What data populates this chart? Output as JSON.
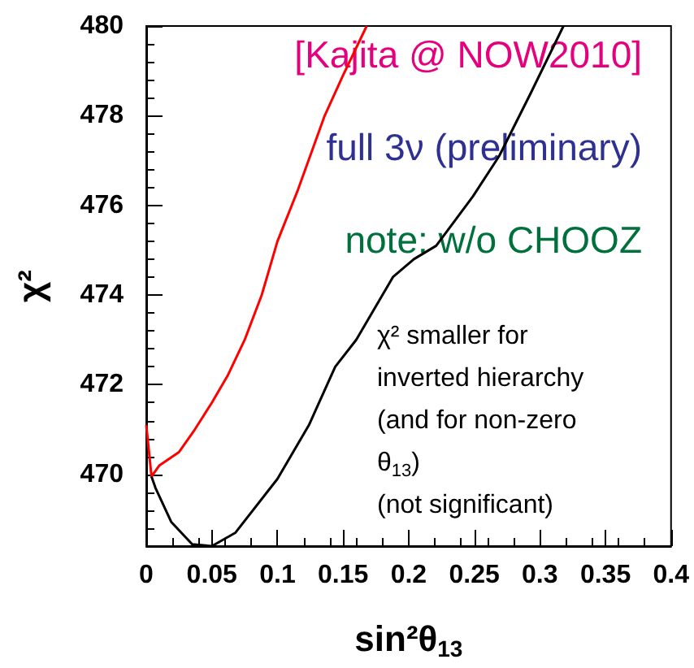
{
  "chart_data": {
    "type": "line",
    "xlabel": "sin²θ$_{13}$",
    "ylabel": "χ²",
    "xlim": [
      0,
      0.4
    ],
    "ylim": [
      468.4,
      480
    ],
    "xticks": [
      0,
      0.05,
      0.1,
      0.15,
      0.2,
      0.25,
      0.3,
      0.35,
      0.4
    ],
    "yticks": [
      470,
      472,
      474,
      476,
      478,
      480
    ],
    "grid": false,
    "marker": "none",
    "line_style": "solid",
    "annotations": [
      "[Kajita @ NOW2010]",
      "full 3ν (preliminary)",
      "note: w/o CHOOZ",
      "χ² smaller for\ninverted hierarchy\n(and for non-zero\nθ$_{13}$)\n(not significant)"
    ],
    "series": [
      {
        "color": "#ff0000",
        "x": [
          0,
          0.004,
          0.01,
          0.025,
          0.037,
          0.05,
          0.062,
          0.075,
          0.088,
          0.1,
          0.115,
          0.136,
          0.15,
          0.168
        ],
        "values": [
          471.1,
          469.95,
          470.2,
          470.5,
          471,
          471.6,
          472.2,
          473,
          474,
          475.2,
          476.3,
          478,
          478.9,
          480
        ]
      },
      {
        "color": "#000000",
        "x": [
          0.004,
          0.007,
          0.019,
          0.035,
          0.05,
          0.068,
          0.1,
          0.124,
          0.144,
          0.16,
          0.188,
          0.204,
          0.221,
          0.249,
          0.269,
          0.293,
          0.318
        ],
        "values": [
          469.95,
          469.7,
          468.94,
          468.44,
          468.4,
          468.7,
          469.9,
          471.1,
          472.4,
          473,
          474.4,
          474.8,
          475.1,
          476.2,
          477.1,
          478.5,
          480
        ]
      }
    ]
  }
}
